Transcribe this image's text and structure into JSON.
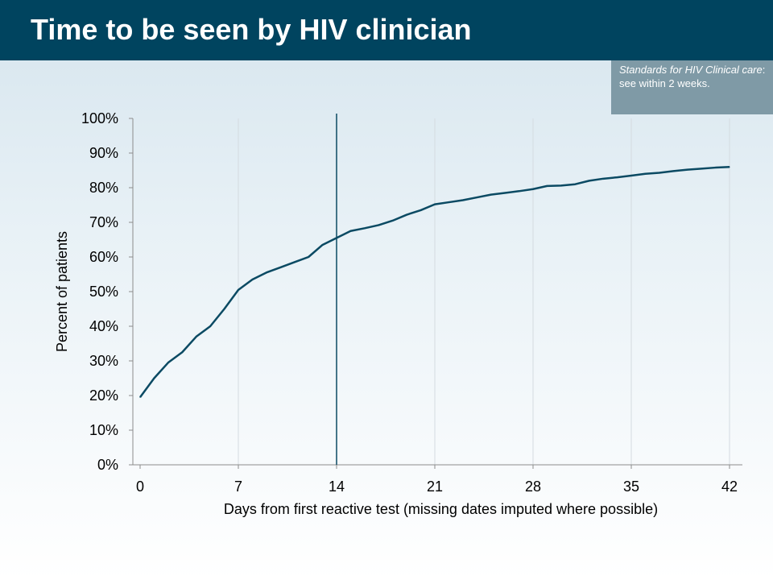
{
  "slide": {
    "title": "Time to be seen by HIV clinician",
    "note_italic": "Standards for HIV Clinical care",
    "note_rest": ": see within 2 weeks."
  },
  "colors": {
    "header": "#00445f",
    "line": "#0b4a63",
    "note_bg": "#7f9aa6"
  },
  "chart_data": {
    "type": "line",
    "title": "",
    "xlabel": "Days from first reactive test (missing dates imputed where possible)",
    "ylabel": "Percent of patients",
    "xlim": [
      0,
      42
    ],
    "ylim": [
      0,
      100
    ],
    "xticks": [
      0,
      7,
      14,
      21,
      28,
      35,
      42
    ],
    "yticks": [
      0,
      10,
      20,
      30,
      40,
      50,
      60,
      70,
      80,
      90,
      100
    ],
    "ytick_labels": [
      "0%",
      "10%",
      "20%",
      "30%",
      "40%",
      "50%",
      "60%",
      "70%",
      "80%",
      "90%",
      "100%"
    ],
    "grid": "vertical",
    "reference_line_x": 14,
    "series": [
      {
        "x": [
          0,
          1,
          2,
          3,
          4,
          5,
          6,
          7,
          8,
          9,
          10,
          11,
          12,
          13,
          14,
          15,
          16,
          17,
          18,
          19,
          20,
          21,
          22,
          23,
          24,
          25,
          26,
          27,
          28,
          29,
          30,
          31,
          32,
          33,
          34,
          35,
          36,
          37,
          38,
          39,
          40,
          41,
          42
        ],
        "values": [
          19.5,
          25,
          29.5,
          32.5,
          37,
          40,
          45,
          50.5,
          53.5,
          55.5,
          57,
          58.5,
          60,
          63.5,
          65.5,
          67.5,
          68.3,
          69.2,
          70.5,
          72.2,
          73.5,
          75.2,
          75.8,
          76.4,
          77.2,
          78,
          78.5,
          79,
          79.6,
          80.5,
          80.6,
          81,
          82,
          82.6,
          83,
          83.5,
          84,
          84.3,
          84.8,
          85.2,
          85.5,
          85.8,
          86
        ]
      }
    ]
  }
}
